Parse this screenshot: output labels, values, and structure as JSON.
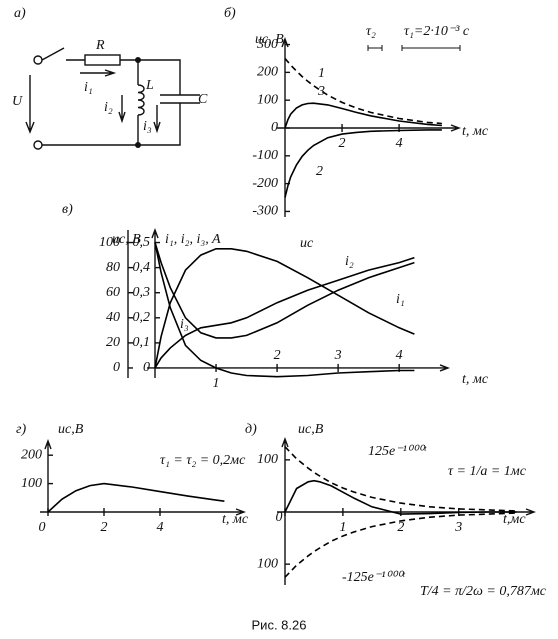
{
  "circuit": {
    "label": "а)",
    "R": "R",
    "L": "L",
    "C": "C",
    "U": "U",
    "currents": [
      "i₁",
      "i₂",
      "i₃"
    ]
  },
  "caption": "Рис. 8.26",
  "chart_data": [
    {
      "type": "line",
      "label": "б)",
      "ylabel": "uc, B",
      "xlabel": "t, мс",
      "annotations": [
        "τ₂",
        "τ₁=2·10⁻³ c"
      ],
      "x": [
        0,
        0.1,
        0.2,
        0.4,
        0.6,
        0.8,
        1,
        1.5,
        2,
        2.5,
        3,
        4,
        5,
        5.5
      ],
      "series": [
        {
          "name": "1",
          "color": "#000",
          "dash": true,
          "values": [
            250,
            238,
            226,
            205,
            185,
            168,
            152,
            118,
            92,
            72,
            56,
            34,
            20,
            16
          ]
        },
        {
          "name": "3",
          "color": "#000",
          "dash": false,
          "values": [
            0,
            30,
            50,
            72,
            83,
            88,
            89,
            83,
            70,
            56,
            44,
            25,
            13,
            9
          ]
        },
        {
          "name": "2",
          "color": "#000",
          "dash": false,
          "values": [
            -250,
            -208,
            -176,
            -133,
            -102,
            -80,
            -63,
            -35,
            -22,
            -16,
            -12,
            -9,
            -7,
            -7
          ]
        }
      ],
      "xlim": [
        0,
        6.1
      ],
      "ylim": [
        -320,
        320
      ],
      "xticks": [
        2,
        4
      ],
      "yticks": [
        -300,
        -200,
        -100,
        0,
        100,
        200,
        300
      ]
    },
    {
      "type": "line",
      "label": "в)",
      "ylabel": "uc, B",
      "y2label": "i₁, i₂, i₃, A",
      "xlabel": "t, мс",
      "x": [
        0,
        0.1,
        0.25,
        0.5,
        0.75,
        1,
        1.25,
        1.5,
        2,
        2.5,
        3,
        3.5,
        4,
        4.25
      ],
      "series": [
        {
          "name": "uc",
          "color": "#000",
          "dash": false,
          "values": [
            0,
            25,
            52,
            78,
            90,
            95,
            95,
            93,
            85,
            72,
            58,
            44,
            32,
            27
          ]
        },
        {
          "name": "i₂",
          "color": "#000",
          "dash": false,
          "axis": "y2",
          "values": [
            0,
            0.04,
            0.08,
            0.13,
            0.16,
            0.17,
            0.18,
            0.2,
            0.26,
            0.31,
            0.35,
            0.39,
            0.42,
            0.44
          ]
        },
        {
          "name": "i₁",
          "color": "#000",
          "dash": false,
          "axis": "y2",
          "values": [
            0.5,
            0.42,
            0.32,
            0.2,
            0.14,
            0.12,
            0.12,
            0.13,
            0.18,
            0.25,
            0.31,
            0.36,
            0.4,
            0.42
          ]
        },
        {
          "name": "i₃",
          "color": "#000",
          "dash": false,
          "axis": "y2",
          "values": [
            0.5,
            0.38,
            0.24,
            0.09,
            0.03,
            0,
            -0.02,
            -0.03,
            -0.035,
            -0.03,
            -0.02,
            -0.015,
            -0.01,
            -0.01
          ]
        }
      ],
      "xlim": [
        0,
        4.8
      ],
      "ylim": [
        -8,
        110
      ],
      "y2lim": [
        -0.04,
        0.55
      ],
      "xticks": [
        1,
        2,
        3,
        4
      ],
      "yticks": [
        0,
        20,
        40,
        60,
        80,
        100
      ],
      "y2ticks": [
        0,
        {
          "value": 0.1,
          "label": "0,1"
        },
        {
          "value": 0.2,
          "label": "0,2"
        },
        {
          "value": 0.3,
          "label": "0,3"
        },
        {
          "value": 0.4,
          "label": "0,4"
        },
        {
          "value": 0.5,
          "label": "0,5"
        }
      ]
    },
    {
      "type": "line",
      "label": "г)",
      "ylabel": "uc,B",
      "xlabel": "t, мс",
      "annotations": [
        "τ₁ = τ₂ = 0,2мс"
      ],
      "x": [
        0,
        0.5,
        1,
        1.5,
        2,
        3,
        4,
        5,
        6,
        6.3
      ],
      "series": [
        {
          "color": "#000",
          "dash": false,
          "values": [
            0,
            45,
            75,
            93,
            100,
            88,
            72,
            56,
            42,
            38
          ]
        }
      ],
      "xlim": [
        0,
        7
      ],
      "ylim": [
        0,
        250
      ],
      "xticks": [
        0,
        2,
        4
      ],
      "yticks": [
        100,
        200
      ]
    },
    {
      "type": "line",
      "label": "д)",
      "ylabel": "uc,B",
      "xlabel": "t,мс",
      "annotations": [
        "τ = 1/a = 1мс",
        "T/4 = π/2ω = 0,787мс"
      ],
      "x": [
        0,
        0.2,
        0.4,
        0.5,
        0.6,
        0.8,
        1,
        1.2,
        1.5,
        2,
        2.5,
        3,
        3.5,
        4
      ],
      "series": [
        {
          "name": "125e⁻¹⁰⁰⁰ᵗ",
          "color": "#000",
          "dash": true,
          "values": [
            125,
            102,
            84,
            76,
            69,
            56,
            46,
            38,
            28,
            17,
            10,
            6,
            4,
            2
          ]
        },
        {
          "name": "-125e⁻¹⁰⁰⁰ᵗ",
          "color": "#000",
          "dash": true,
          "values": [
            -125,
            -102,
            -84,
            -76,
            -69,
            -56,
            -46,
            -38,
            -28,
            -17,
            -10,
            -6,
            -4,
            -2
          ]
        },
        {
          "color": "#000",
          "dash": false,
          "values": [
            0,
            45,
            58,
            60,
            58,
            50,
            38,
            26,
            10,
            -4,
            -3,
            -1,
            0,
            0
          ]
        }
      ],
      "xlim": [
        0,
        4.3
      ],
      "ylim": [
        -140,
        140
      ],
      "xticks": [
        0,
        1,
        2,
        3
      ],
      "yticks": [
        {
          "value": -100,
          "label": "100"
        },
        100
      ]
    }
  ]
}
